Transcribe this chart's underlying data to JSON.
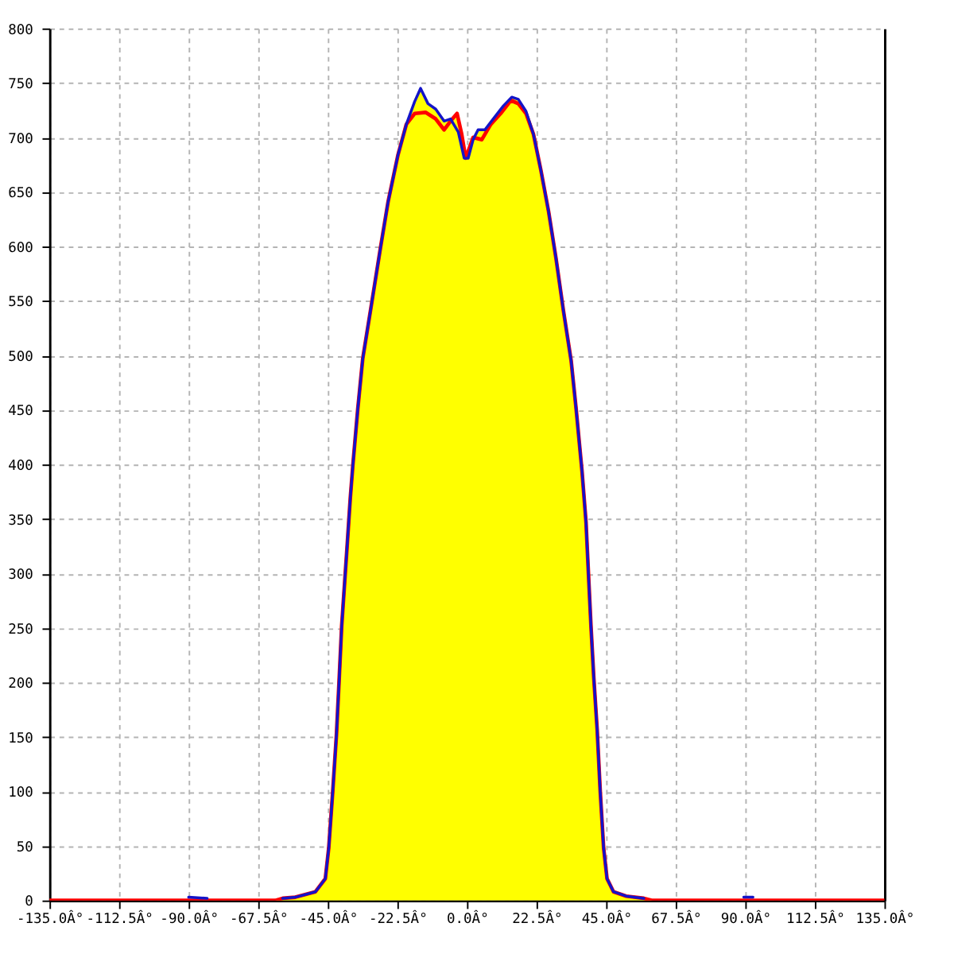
{
  "chart_data": {
    "type": "line",
    "xlim": [
      -135,
      135
    ],
    "xticks": [
      {
        "value": -135,
        "label": "-135.0Â°"
      },
      {
        "value": -112.5,
        "label": "-112.5Â°"
      },
      {
        "value": -90,
        "label": "-90.0Â°"
      },
      {
        "value": -67.5,
        "label": "-67.5Â°"
      },
      {
        "value": -45,
        "label": "-45.0Â°"
      },
      {
        "value": -22.5,
        "label": "-22.5Â°"
      },
      {
        "value": 0,
        "label": "0.0Â°"
      },
      {
        "value": 22.5,
        "label": "22.5Â°"
      },
      {
        "value": 45,
        "label": "45.0Â°"
      },
      {
        "value": 67.5,
        "label": "67.5Â°"
      },
      {
        "value": 90,
        "label": "90.0Â°"
      },
      {
        "value": 112.5,
        "label": "112.5Â°"
      },
      {
        "value": 135,
        "label": "135.0Â°"
      }
    ],
    "ylim": [
      0,
      800
    ],
    "yticks": [
      0,
      50,
      100,
      150,
      200,
      250,
      300,
      350,
      400,
      450,
      500,
      550,
      600,
      650,
      700,
      750,
      800
    ],
    "grid": true,
    "series": [
      {
        "type": "area",
        "color": "#ffff00",
        "x": [
          -135,
          -62,
          -59.6,
          -55.5,
          -49,
          -45.8,
          -44.7,
          -43.4,
          -42.2,
          -41.3,
          -40.5,
          -38.8,
          -37.7,
          -36.9,
          -35.3,
          -33.7,
          -31.2,
          -28,
          -25.5,
          -22.3,
          -19.6,
          -16.9,
          -15,
          -12.6,
          -10.1,
          -7.4,
          -5.3,
          -3.2,
          -1.7,
          -0.9,
          0.4,
          2,
          3.6,
          5.8,
          7.7,
          8.5,
          10.9,
          11.8,
          14.5,
          16.6,
          19.1,
          21.5,
          23.9,
          26.4,
          28.8,
          31.2,
          33.7,
          35.3,
          37.2,
          38.5,
          39.3,
          40.1,
          41,
          42.1,
          43.1,
          44.2,
          45.3,
          47.4,
          51.5,
          57.2,
          60,
          135
        ],
        "values": [
          0,
          0,
          2,
          3,
          8,
          20,
          48,
          100,
          152,
          204,
          252,
          323,
          370,
          399,
          451,
          497,
          541,
          598,
          641,
          684,
          712,
          733,
          745,
          731,
          726,
          715,
          717,
          722,
          703,
          681,
          681,
          700,
          707,
          707,
          712,
          717,
          722,
          729,
          737,
          735,
          724,
          703,
          670,
          632,
          589,
          541,
          495,
          451,
          394,
          347,
          299,
          252,
          205,
          157,
          100,
          48,
          20,
          8,
          4,
          2,
          0,
          0
        ]
      },
      {
        "color": "#ff0000",
        "x": [
          -135,
          -62,
          -59.6,
          -55.5,
          -49,
          -45.8,
          -44.7,
          -43.4,
          -42.2,
          -41.3,
          -40.5,
          -38.8,
          -37.7,
          -36.9,
          -35.3,
          -33.7,
          -31.2,
          -28,
          -25.5,
          -22.3,
          -19.6,
          -16.9,
          -13.4,
          -10.1,
          -7.4,
          -5.3,
          -3.2,
          -1.7,
          -0.4,
          2,
          4.8,
          7.7,
          10.9,
          14.2,
          16.6,
          19.1,
          21.5,
          23.9,
          26.4,
          28.8,
          31.2,
          33.7,
          35.3,
          37.2,
          38.5,
          39.3,
          40.1,
          41,
          42.1,
          43.1,
          44.2,
          45.3,
          47.4,
          51.5,
          57.2,
          60,
          135
        ],
        "values": [
          0,
          0,
          2,
          3,
          8,
          20,
          48,
          100,
          152,
          204,
          252,
          323,
          370,
          399,
          451,
          497,
          541,
          598,
          641,
          684,
          712,
          722,
          723,
          717,
          707,
          715,
          722,
          703,
          681,
          700,
          698,
          712,
          722,
          734,
          731,
          722,
          703,
          670,
          632,
          589,
          541,
          495,
          451,
          394,
          347,
          299,
          252,
          205,
          157,
          100,
          48,
          20,
          8,
          4,
          2,
          0,
          0
        ]
      },
      {
        "color": "#1414c8",
        "x": [
          -90,
          -84,
          -70,
          -59.6,
          -55.5,
          -49,
          -45.8,
          -44.7,
          -43.4,
          -42.2,
          -41.3,
          -40.5,
          -38.8,
          -37.7,
          -36.9,
          -35.3,
          -33.7,
          -31.2,
          -28,
          -25.5,
          -22.3,
          -19.6,
          -16.9,
          -15,
          -12.6,
          -10.1,
          -7.4,
          -5.3,
          -2.8,
          -0.9,
          0.4,
          2,
          3.6,
          5.8,
          8.5,
          11.8,
          14.5,
          16.6,
          19.1,
          21.5,
          23.9,
          26.4,
          28.8,
          31.2,
          33.7,
          35.3,
          37.2,
          38.5,
          39.3,
          40.1,
          41,
          42.1,
          43.1,
          44.2,
          45.3,
          47.4,
          51.5,
          57.2,
          75,
          89.5,
          92.5
        ],
        "values": [
          3,
          2,
          null,
          2,
          3,
          8,
          20,
          48,
          100,
          152,
          204,
          252,
          323,
          370,
          399,
          451,
          497,
          541,
          598,
          641,
          684,
          712,
          733,
          745,
          731,
          726,
          715,
          717,
          705,
          681,
          681,
          698,
          707,
          707,
          717,
          729,
          737,
          735,
          724,
          703,
          670,
          632,
          589,
          541,
          495,
          451,
          394,
          347,
          299,
          252,
          205,
          157,
          100,
          48,
          20,
          8,
          4,
          2,
          null,
          3,
          3
        ]
      }
    ]
  }
}
